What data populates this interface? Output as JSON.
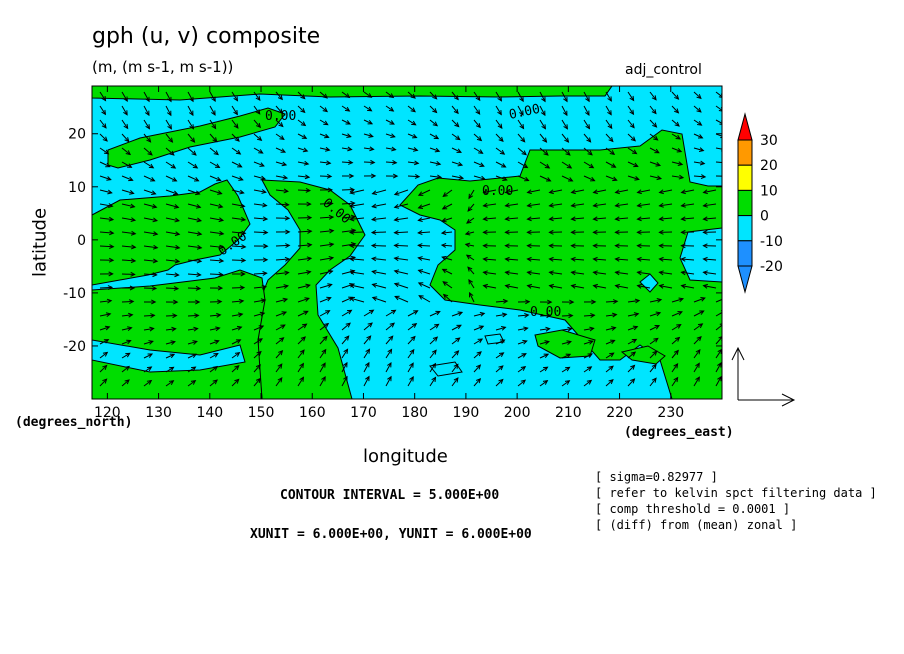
{
  "header": {
    "title": "gph (u, v) composite",
    "subtitle": "(m, (m s-1, m s-1))",
    "run_label": "adj_control"
  },
  "footer": {
    "contour_interval": "CONTOUR INTERVAL = 5.000E+00",
    "vector_units": "XUNIT = 6.000E+00, YUNIT = 6.000E+00",
    "notes": [
      "[ sigma=0.82977 ]",
      "[ refer to kelvin spct filtering data ]",
      "[ comp threshold = 0.0001 ]",
      "[ (diff) from (mean) zonal ]"
    ]
  },
  "chart_data": {
    "type": "heatmap",
    "title": "gph (u, v) composite",
    "xlabel": "longitude",
    "ylabel": "latitude",
    "x_unit_label": "(degrees_east)",
    "y_unit_label": "(degrees_north)",
    "xlim": [
      117,
      240
    ],
    "ylim": [
      -30,
      29
    ],
    "xticks": [
      120,
      130,
      140,
      150,
      160,
      170,
      180,
      190,
      200,
      210,
      220,
      230
    ],
    "yticks": [
      -20,
      -10,
      0,
      10,
      20
    ],
    "contour_labels": [
      "0.00",
      "0.00",
      "0.00",
      "0.00",
      "0.00",
      "0.00"
    ],
    "colorbar": {
      "levels": [
        -20,
        -10,
        0,
        10,
        20,
        30
      ],
      "bins": [
        {
          "range": [
            -25,
            -20
          ],
          "color": "#1e90ff"
        },
        {
          "range": [
            -20,
            -10
          ],
          "color": "#1e90ff"
        },
        {
          "range": [
            -10,
            0
          ],
          "color": "#00e5ff"
        },
        {
          "range": [
            0,
            10
          ],
          "color": "#00dd00"
        },
        {
          "range": [
            10,
            20
          ],
          "color": "#ffff00"
        },
        {
          "range": [
            20,
            30
          ],
          "color": "#ff9900"
        },
        {
          "range": [
            30,
            35
          ],
          "color": "#ff0000"
        }
      ]
    },
    "fill_colors": {
      "negative": "#00e5ff",
      "positive": "#00dd00"
    },
    "vector_field": "u, v wind vectors (m s-1)",
    "grid": false
  }
}
